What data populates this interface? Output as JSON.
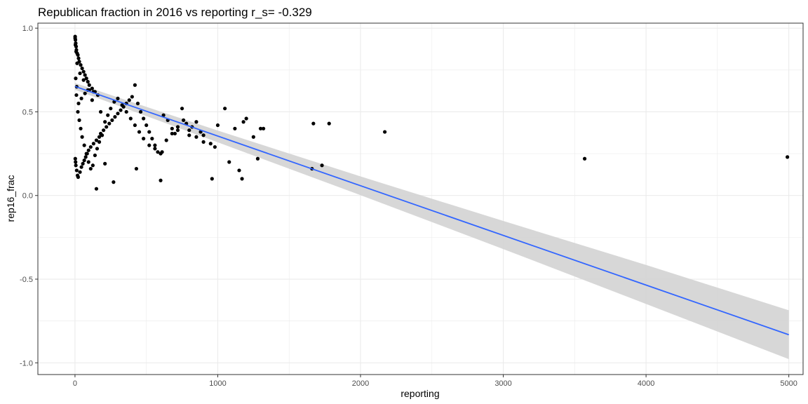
{
  "chart_data": {
    "type": "scatter",
    "title": "Republican fraction in 2016 vs reporting  r_s= -0.329",
    "xlabel": "reporting",
    "ylabel": "rep16_frac",
    "xlim": [
      -260,
      5100
    ],
    "ylim": [
      -1.07,
      1.03
    ],
    "x_ticks": [
      0,
      1000,
      2000,
      3000,
      4000,
      5000
    ],
    "x_tick_labels": [
      "0",
      "1000",
      "2000",
      "3000",
      "4000",
      "5000"
    ],
    "y_ticks": [
      -1.0,
      -0.5,
      0.0,
      0.5,
      1.0
    ],
    "y_tick_labels": [
      "-1.0",
      "-0.5",
      "0.0",
      "0.5",
      "1.0"
    ],
    "grid": true,
    "colors": {
      "points": "#000000",
      "fit_line": "#3366ff",
      "ribbon": "#d3d3d3",
      "grid": "#ebebeb",
      "panel_border": "#333333"
    },
    "series": [
      {
        "kind": "points",
        "x": [
          1,
          3,
          5,
          8,
          10,
          15,
          20,
          25,
          30,
          40,
          50,
          60,
          70,
          80,
          90,
          100,
          120,
          140,
          160,
          2,
          4,
          6,
          12,
          18,
          22,
          35,
          45,
          55,
          65,
          75,
          85,
          95,
          110,
          130,
          150,
          170,
          180,
          200,
          220,
          240,
          260,
          280,
          300,
          320,
          340,
          360,
          380,
          400,
          420,
          440,
          460,
          480,
          500,
          520,
          540,
          560,
          580,
          600,
          620,
          650,
          680,
          700,
          720,
          750,
          780,
          800,
          820,
          850,
          880,
          900,
          950,
          980,
          1000,
          1050,
          1080,
          1120,
          1150,
          1170,
          1180,
          1200,
          1250,
          1280,
          1300,
          1320,
          1660,
          1670,
          1730,
          1780,
          2170,
          3570,
          4990,
          150,
          270,
          960,
          430,
          610,
          210,
          180,
          120,
          90,
          60,
          35,
          15,
          8,
          3,
          1,
          5,
          10,
          20,
          30,
          40,
          50,
          65,
          80,
          95,
          110,
          125,
          140,
          155,
          170,
          190,
          210,
          230,
          250,
          275,
          300,
          330,
          360,
          390,
          420,
          450,
          480,
          520,
          560,
          600,
          640,
          680,
          720,
          760,
          800,
          850,
          900,
          12,
          25,
          45,
          70,
          100,
          130
        ],
        "y": [
          0.95,
          0.93,
          0.91,
          0.89,
          0.87,
          0.85,
          0.84,
          0.82,
          0.8,
          0.78,
          0.76,
          0.74,
          0.72,
          0.7,
          0.68,
          0.66,
          0.64,
          0.62,
          0.6,
          0.22,
          0.2,
          0.18,
          0.15,
          0.12,
          0.11,
          0.14,
          0.17,
          0.19,
          0.21,
          0.23,
          0.25,
          0.27,
          0.29,
          0.31,
          0.33,
          0.35,
          0.37,
          0.39,
          0.41,
          0.43,
          0.45,
          0.47,
          0.49,
          0.51,
          0.53,
          0.55,
          0.57,
          0.59,
          0.66,
          0.55,
          0.5,
          0.46,
          0.42,
          0.38,
          0.34,
          0.3,
          0.26,
          0.09,
          0.48,
          0.45,
          0.4,
          0.37,
          0.39,
          0.52,
          0.43,
          0.36,
          0.41,
          0.35,
          0.38,
          0.32,
          0.31,
          0.29,
          0.42,
          0.52,
          0.2,
          0.4,
          0.15,
          0.1,
          0.44,
          0.46,
          0.35,
          0.22,
          0.4,
          0.4,
          0.16,
          0.43,
          0.18,
          0.43,
          0.38,
          0.22,
          0.23,
          0.04,
          0.08,
          0.1,
          0.16,
          0.26,
          0.19,
          0.5,
          0.57,
          0.63,
          0.69,
          0.73,
          0.79,
          0.86,
          0.9,
          0.94,
          0.7,
          0.6,
          0.5,
          0.45,
          0.4,
          0.35,
          0.3,
          0.25,
          0.2,
          0.16,
          0.18,
          0.24,
          0.28,
          0.32,
          0.36,
          0.44,
          0.48,
          0.52,
          0.56,
          0.58,
          0.54,
          0.5,
          0.46,
          0.42,
          0.38,
          0.34,
          0.3,
          0.28,
          0.25,
          0.33,
          0.37,
          0.41,
          0.45,
          0.39,
          0.44,
          0.36,
          0.65,
          0.55,
          0.58,
          0.61,
          0.63,
          0.62
        ]
      },
      {
        "kind": "fit_line",
        "x": [
          0,
          5000
        ],
        "y": [
          0.652,
          -0.832
        ]
      },
      {
        "kind": "confidence_band",
        "x": [
          0,
          1000,
          2000,
          3000,
          4000,
          5000
        ],
        "lower": [
          0.632,
          0.318,
          0.002,
          -0.32,
          -0.648,
          -0.978
        ],
        "upper": [
          0.672,
          0.388,
          0.114,
          -0.152,
          -0.415,
          -0.686
        ]
      }
    ]
  }
}
